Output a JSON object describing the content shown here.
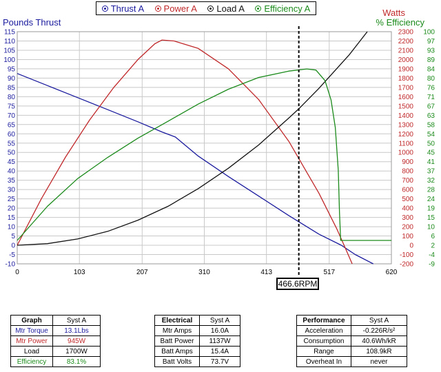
{
  "legend": [
    {
      "label": "Thrust A",
      "color": "#1a1a9e"
    },
    {
      "label": "Power A",
      "color": "#c0282a"
    },
    {
      "label": "Load A",
      "color": "#111111"
    },
    {
      "label": "Efficiency A",
      "color": "#1a8a1a"
    }
  ],
  "axis_titles": {
    "left": "Pounds Thrust",
    "right_watts": "Watts",
    "right_eff": "% Efficiency"
  },
  "rpm_marker": "466.6RPM",
  "chart_data": {
    "type": "line",
    "grid": true,
    "x_ticks": [
      0,
      103,
      207,
      310,
      413,
      517,
      620
    ],
    "xlim": [
      0,
      620
    ],
    "y_left": {
      "label": "Pounds Thrust",
      "range": [
        -10,
        115
      ],
      "ticks": [
        -10,
        -5,
        0,
        5,
        10,
        15,
        20,
        25,
        30,
        35,
        40,
        45,
        50,
        55,
        60,
        65,
        70,
        75,
        80,
        85,
        90,
        95,
        100,
        105,
        110,
        115
      ]
    },
    "y_right_watts": {
      "label": "Watts",
      "range": [
        -200,
        2300
      ],
      "ticks": [
        -200,
        -100,
        0,
        100,
        200,
        300,
        400,
        500,
        600,
        700,
        800,
        900,
        1000,
        1100,
        1200,
        1300,
        1400,
        1500,
        1600,
        1700,
        1800,
        1900,
        2000,
        2100,
        2200,
        2300
      ]
    },
    "y_right_eff": {
      "label": "% Efficiency",
      "range": [
        -9,
        100
      ],
      "ticks": [
        "-9",
        "-4",
        "2",
        "6",
        "10",
        "15",
        "19",
        "24",
        "28",
        "32",
        "37",
        "41",
        "45",
        "50",
        "54",
        "58",
        "63",
        "67",
        "71",
        "76",
        "80",
        "84",
        "89",
        "93",
        "97",
        "100"
      ]
    },
    "rpm_marker": 466.6,
    "series": [
      {
        "name": "Thrust A",
        "axis": "left",
        "color": "#1a1a9e",
        "points": [
          [
            0,
            92.5
          ],
          [
            50,
            86
          ],
          [
            100,
            79.5
          ],
          [
            150,
            73
          ],
          [
            200,
            66.5
          ],
          [
            240,
            61
          ],
          [
            262,
            58.3
          ],
          [
            300,
            48
          ],
          [
            350,
            37
          ],
          [
            400,
            26.5
          ],
          [
            450,
            16
          ],
          [
            500,
            6
          ],
          [
            537,
            0
          ],
          [
            560,
            -5
          ],
          [
            590,
            -10
          ]
        ]
      },
      {
        "name": "Power A",
        "axis": "watts",
        "color": "#c0282a",
        "points": [
          [
            0,
            0
          ],
          [
            40,
            500
          ],
          [
            80,
            950
          ],
          [
            120,
            1350
          ],
          [
            160,
            1700
          ],
          [
            200,
            2000
          ],
          [
            228,
            2170
          ],
          [
            240,
            2210
          ],
          [
            260,
            2200
          ],
          [
            300,
            2120
          ],
          [
            350,
            1900
          ],
          [
            400,
            1570
          ],
          [
            450,
            1120
          ],
          [
            500,
            560
          ],
          [
            530,
            170
          ],
          [
            545,
            -50
          ],
          [
            555,
            -200
          ]
        ]
      },
      {
        "name": "Load A",
        "axis": "watts",
        "color": "#111111",
        "points": [
          [
            0,
            0
          ],
          [
            50,
            17
          ],
          [
            100,
            68
          ],
          [
            150,
            150
          ],
          [
            200,
            270
          ],
          [
            250,
            420
          ],
          [
            300,
            610
          ],
          [
            350,
            830
          ],
          [
            400,
            1080
          ],
          [
            450,
            1370
          ],
          [
            466.6,
            1470
          ],
          [
            500,
            1690
          ],
          [
            550,
            2050
          ],
          [
            580,
            2300
          ]
        ]
      },
      {
        "name": "Efficiency A",
        "axis": "eff",
        "color": "#1a8a1a",
        "points": [
          [
            0,
            2
          ],
          [
            50,
            18
          ],
          [
            100,
            31
          ],
          [
            150,
            41
          ],
          [
            200,
            50
          ],
          [
            250,
            58
          ],
          [
            300,
            66
          ],
          [
            350,
            73
          ],
          [
            400,
            78.5
          ],
          [
            450,
            81.5
          ],
          [
            480,
            82.5
          ],
          [
            495,
            82
          ],
          [
            510,
            77
          ],
          [
            520,
            68
          ],
          [
            527,
            55
          ],
          [
            532,
            35
          ],
          [
            534,
            15
          ],
          [
            536,
            2
          ],
          [
            620,
            2
          ]
        ]
      }
    ]
  },
  "tables": {
    "graph": {
      "header": [
        "Graph",
        "Syst A"
      ],
      "rows": [
        {
          "label": "Mtr Torque",
          "value": "13.1Lbs",
          "color": "#1a1a9e"
        },
        {
          "label": "Mtr Power",
          "value": "945W",
          "color": "#c0282a"
        },
        {
          "label": "Load",
          "value": "1700W",
          "color": "#111111"
        },
        {
          "label": "Efficiency",
          "value": "83.1%",
          "color": "#1a8a1a"
        }
      ]
    },
    "electrical": {
      "header": [
        "Electrical",
        "Syst A"
      ],
      "rows": [
        {
          "label": "Mtr Amps",
          "value": "16.0A"
        },
        {
          "label": "Batt Power",
          "value": "1137W"
        },
        {
          "label": "Batt Amps",
          "value": "15.4A"
        },
        {
          "label": "Batt Volts",
          "value": "73.7V"
        }
      ]
    },
    "performance": {
      "header": [
        "Performance",
        "Syst A"
      ],
      "rows": [
        {
          "label": "Acceleration",
          "value": "-0.226R/s²"
        },
        {
          "label": "Consumption",
          "value": "40.6Wh/kR"
        },
        {
          "label": "Range",
          "value": "108.9kR"
        },
        {
          "label": "Overheat In",
          "value": "never"
        }
      ]
    }
  }
}
